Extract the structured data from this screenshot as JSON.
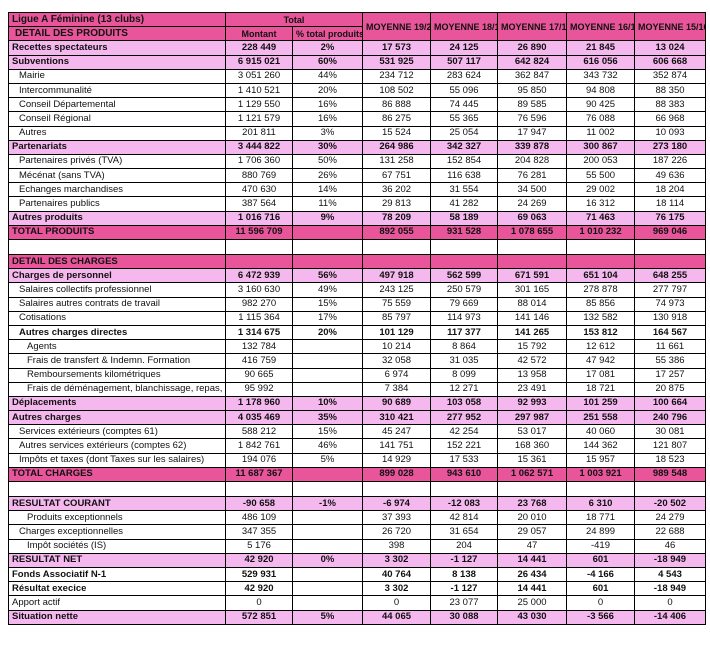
{
  "header": {
    "title": "Ligue A Féminine (13 clubs)",
    "subtitle": "DETAIL DES PRODUITS",
    "total_label": "Total",
    "montant_label": "Montant",
    "pct_label": "% total produits",
    "years": [
      "MOYENNE 19/20",
      "MOYENNE 18/19",
      "MOYENNE 17/18",
      "MOYENNE 16/17",
      "MOYENNE 15/16"
    ]
  },
  "colors": {
    "header_pink": "#e8559a",
    "section_pink": "#f5b8ee"
  },
  "rows": [
    {
      "label": "Recettes spectateurs",
      "montant": "228 449",
      "pct": "2%",
      "values": [
        "17 573",
        "24 125",
        "26 890",
        "21 845",
        "13 024"
      ],
      "style": "section",
      "indent": 0
    },
    {
      "label": "Subventions",
      "montant": "6 915 021",
      "pct": "60%",
      "values": [
        "531 925",
        "507 117",
        "642 824",
        "616 056",
        "606 668"
      ],
      "style": "section",
      "indent": 0
    },
    {
      "label": "Mairie",
      "montant": "3 051 260",
      "pct": "44%",
      "values": [
        "234 712",
        "283 624",
        "362 847",
        "343 732",
        "352 874"
      ],
      "style": "plain",
      "indent": 1
    },
    {
      "label": "Intercommunalité",
      "montant": "1 410 521",
      "pct": "20%",
      "values": [
        "108 502",
        "55 096",
        "95 850",
        "94 808",
        "88 350"
      ],
      "style": "plain",
      "indent": 1
    },
    {
      "label": "Conseil Départemental",
      "montant": "1 129 550",
      "pct": "16%",
      "values": [
        "86 888",
        "74 445",
        "89 585",
        "90 425",
        "88 383"
      ],
      "style": "plain",
      "indent": 1
    },
    {
      "label": "Conseil Régional",
      "montant": "1 121 579",
      "pct": "16%",
      "values": [
        "86 275",
        "55 365",
        "76 596",
        "76 088",
        "66 968"
      ],
      "style": "plain",
      "indent": 1
    },
    {
      "label": "Autres",
      "montant": "201 811",
      "pct": "3%",
      "values": [
        "15 524",
        "25 054",
        "17 947",
        "11 002",
        "10 093"
      ],
      "style": "plain",
      "indent": 1
    },
    {
      "label": "Partenariats",
      "montant": "3 444 822",
      "pct": "30%",
      "values": [
        "264 986",
        "342 327",
        "339 878",
        "300 867",
        "273 180"
      ],
      "style": "section",
      "indent": 0
    },
    {
      "label": "Partenaires privés (TVA)",
      "montant": "1 706 360",
      "pct": "50%",
      "values": [
        "131 258",
        "152 854",
        "204 828",
        "200 053",
        "187 226"
      ],
      "style": "plain",
      "indent": 1
    },
    {
      "label": "Mécénat (sans TVA)",
      "montant": "880 769",
      "pct": "26%",
      "values": [
        "67 751",
        "116 638",
        "76 281",
        "55 500",
        "49 636"
      ],
      "style": "plain",
      "indent": 1
    },
    {
      "label": "Echanges marchandises",
      "montant": "470 630",
      "pct": "14%",
      "values": [
        "36 202",
        "31 554",
        "34 500",
        "29 002",
        "18 204"
      ],
      "style": "plain",
      "indent": 1
    },
    {
      "label": "Partenaires publics",
      "montant": "387 564",
      "pct": "11%",
      "values": [
        "29 813",
        "41 282",
        "24 269",
        "16 312",
        "18 114"
      ],
      "style": "plain",
      "indent": 1
    },
    {
      "label": "Autres produits",
      "montant": "1 016 716",
      "pct": "9%",
      "values": [
        "78 209",
        "58 189",
        "69 063",
        "71 463",
        "76 175"
      ],
      "style": "section",
      "indent": 0
    },
    {
      "label": "TOTAL  PRODUITS",
      "montant": "11 596 709",
      "pct": "",
      "values": [
        "892 055",
        "931 528",
        "1 078 655",
        "1 010 232",
        "969 046"
      ],
      "style": "total",
      "indent": 0
    },
    {
      "label": "",
      "montant": "",
      "pct": "",
      "values": [
        "",
        "",
        "",
        "",
        ""
      ],
      "style": "blank",
      "indent": 0
    },
    {
      "label": "DETAIL DES CHARGES",
      "montant": "",
      "pct": "",
      "values": [
        "",
        "",
        "",
        "",
        ""
      ],
      "style": "total",
      "indent": 0
    },
    {
      "label": "Charges de personnel",
      "montant": "6 472 939",
      "pct": "56%",
      "values": [
        "497 918",
        "562 599",
        "671 591",
        "651 104",
        "648 255"
      ],
      "style": "section",
      "indent": 0
    },
    {
      "label": "Salaires collectifs professionnel",
      "montant": "3 160 630",
      "pct": "49%",
      "values": [
        "243 125",
        "250 579",
        "301 165",
        "278 878",
        "277 797"
      ],
      "style": "plain",
      "indent": 1
    },
    {
      "label": "Salaires autres contrats de travail",
      "montant": "982 270",
      "pct": "15%",
      "values": [
        "75 559",
        "79 669",
        "88 014",
        "85 856",
        "74 973"
      ],
      "style": "plain",
      "indent": 1
    },
    {
      "label": "Cotisations",
      "montant": "1 115 364",
      "pct": "17%",
      "values": [
        "85 797",
        "114 973",
        "141 146",
        "132 582",
        "130 918"
      ],
      "style": "plain",
      "indent": 1
    },
    {
      "label": "Autres charges directes",
      "montant": "1 314 675",
      "pct": "20%",
      "values": [
        "101 129",
        "117 377",
        "141 265",
        "153 812",
        "164 567"
      ],
      "style": "subbold",
      "indent": 1
    },
    {
      "label": "Agents",
      "montant": "132 784",
      "pct": "",
      "values": [
        "10 214",
        "8 864",
        "15 792",
        "12 612",
        "11 661"
      ],
      "style": "plain",
      "indent": 2
    },
    {
      "label": "Frais de transfert & Indemn. Formation",
      "montant": "416 759",
      "pct": "",
      "values": [
        "32 058",
        "31 035",
        "42 572",
        "47 942",
        "55 386"
      ],
      "style": "plain",
      "indent": 2
    },
    {
      "label": "Remboursements kilométriques",
      "montant": "90 665",
      "pct": "",
      "values": [
        "6 974",
        "8 099",
        "13 958",
        "17 081",
        "17 257"
      ],
      "style": "plain",
      "indent": 2
    },
    {
      "label": "Frais de déménagement, blanchissage, repas, vac",
      "montant": "95 992",
      "pct": "",
      "values": [
        "7 384",
        "12 271",
        "23 491",
        "18 721",
        "20 875"
      ],
      "style": "plain",
      "indent": 2
    },
    {
      "label": "Déplacements",
      "montant": "1 178 960",
      "pct": "10%",
      "values": [
        "90 689",
        "103 058",
        "92 993",
        "101 259",
        "100 664"
      ],
      "style": "section",
      "indent": 0
    },
    {
      "label": "Autres charges",
      "montant": "4 035 469",
      "pct": "35%",
      "values": [
        "310 421",
        "277 952",
        "297 987",
        "251 558",
        "240 796"
      ],
      "style": "section",
      "indent": 0
    },
    {
      "label": "Services extérieurs (comptes 61)",
      "montant": "588 212",
      "pct": "15%",
      "values": [
        "45 247",
        "42 254",
        "53 017",
        "40 060",
        "30 081"
      ],
      "style": "plain",
      "indent": 1
    },
    {
      "label": "Autres services extérieurs (comptes 62)",
      "montant": "1 842 761",
      "pct": "46%",
      "values": [
        "141 751",
        "152 221",
        "168 360",
        "144 362",
        "121 807"
      ],
      "style": "plain",
      "indent": 1
    },
    {
      "label": "Impôts et taxes (dont Taxes sur les salaires)",
      "montant": "194 076",
      "pct": "5%",
      "values": [
        "14 929",
        "17 533",
        "15 361",
        "15 957",
        "18 523"
      ],
      "style": "plain",
      "indent": 1
    },
    {
      "label": "TOTAL  CHARGES",
      "montant": "11 687 367",
      "pct": "",
      "values": [
        "899 028",
        "943 610",
        "1 062 571",
        "1 003 921",
        "989 548"
      ],
      "style": "total",
      "indent": 0
    },
    {
      "label": "",
      "montant": "",
      "pct": "",
      "values": [
        "",
        "",
        "",
        "",
        ""
      ],
      "style": "blank",
      "indent": 0
    },
    {
      "label": "RESULTAT COURANT",
      "montant": "-90 658",
      "pct": "-1%",
      "values": [
        "-6 974",
        "-12 083",
        "23 768",
        "6 310",
        "-20 502"
      ],
      "style": "section",
      "indent": 0
    },
    {
      "label": "Produits exceptionnels",
      "montant": "486 109",
      "pct": "",
      "values": [
        "37 393",
        "42 814",
        "20 010",
        "18 771",
        "24 279"
      ],
      "style": "plain",
      "indent": 2
    },
    {
      "label": "Charges exceptionnelles",
      "montant": "347 355",
      "pct": "",
      "values": [
        "26 720",
        "31 654",
        "29 057",
        "24 899",
        "22 688"
      ],
      "style": "plain",
      "indent": 1
    },
    {
      "label": "Impôt sociétés (IS)",
      "montant": "5 176",
      "pct": "",
      "values": [
        "398",
        "204",
        "47",
        "-419",
        "46"
      ],
      "style": "plain",
      "indent": 2
    },
    {
      "label": "RESULTAT NET",
      "montant": "42 920",
      "pct": "0%",
      "values": [
        "3 302",
        "-1 127",
        "14 441",
        "601",
        "-18 949"
      ],
      "style": "section",
      "indent": 0
    },
    {
      "label": "Fonds Associatif N-1",
      "montant": "529 931",
      "pct": "",
      "values": [
        "40 764",
        "8 138",
        "26 434",
        "-4 166",
        "4 543"
      ],
      "style": "subbold",
      "indent": 0
    },
    {
      "label": "Résultat execice",
      "montant": "42 920",
      "pct": "",
      "values": [
        "3 302",
        "-1 127",
        "14 441",
        "601",
        "-18 949"
      ],
      "style": "subbold",
      "indent": 0
    },
    {
      "label": "Apport actif",
      "montant": "0",
      "pct": "",
      "values": [
        "0",
        "23 077",
        "25 000",
        "0",
        "0"
      ],
      "style": "plain",
      "indent": 0
    },
    {
      "label": "Situation nette",
      "montant": "572 851",
      "pct": "5%",
      "values": [
        "44 065",
        "30 088",
        "43 030",
        "-3 566",
        "-14 406"
      ],
      "style": "section",
      "indent": 0
    }
  ]
}
